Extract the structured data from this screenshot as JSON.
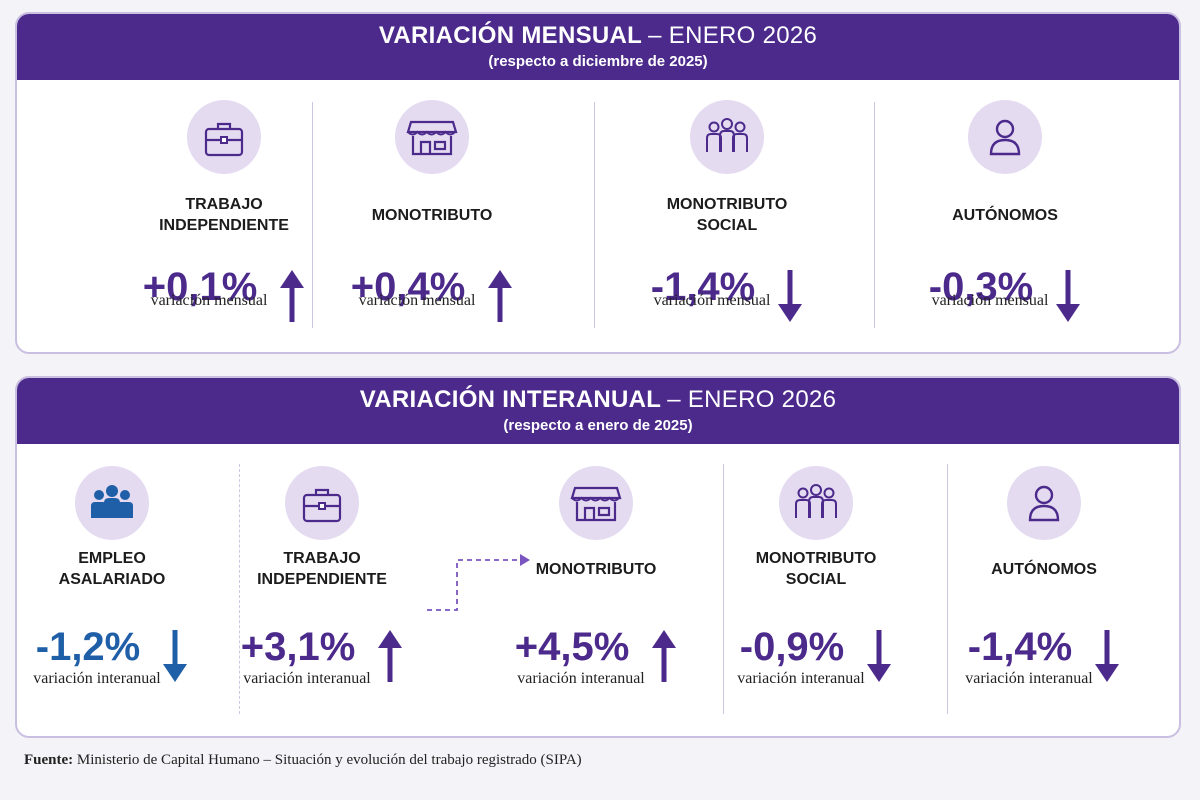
{
  "sections": [
    {
      "title": "VARIACIÓN MENSUAL",
      "title_period": "– ENERO 2026",
      "subtitle": "(respecto a diciembre de 2025)",
      "items": [
        {
          "label": "TRABAJO INDEPENDIENTE",
          "value": "+0,1%",
          "caption": "variación mensual",
          "color": "#4b2a8c"
        },
        {
          "label": "MONOTRIBUTO",
          "value": "+0,4%",
          "caption": "variación mensual",
          "color": "#4b2a8c"
        },
        {
          "label": "MONOTRIBUTO SOCIAL",
          "value": "-1,4%",
          "caption": "variación mensual",
          "color": "#4b2a8c"
        },
        {
          "label": "AUTÓNOMOS",
          "value": "-0,3%",
          "caption": "variación mensual",
          "color": "#4b2a8c"
        }
      ]
    },
    {
      "title": "VARIACIÓN INTERANUAL",
      "title_period": "– ENERO 2026",
      "subtitle": "(respecto a enero de 2025)",
      "items": [
        {
          "label": "EMPLEO ASALARIADO",
          "value": "-1,2%",
          "caption": "variación interanual",
          "color": "#1f5fa8"
        },
        {
          "label": "TRABAJO INDEPENDIENTE",
          "value": "+3,1%",
          "caption": "variación interanual",
          "color": "#4b2a8c"
        },
        {
          "label": "MONOTRIBUTO",
          "value": "+4,5%",
          "caption": "variación interanual",
          "color": "#4b2a8c"
        },
        {
          "label": "MONOTRIBUTO SOCIAL",
          "value": "-0,9%",
          "caption": "variación interanual",
          "color": "#4b2a8c"
        },
        {
          "label": "AUTÓNOMOS",
          "value": "-1,4%",
          "caption": "variación interanual",
          "color": "#4b2a8c"
        }
      ]
    }
  ],
  "source_label": "Fuente:",
  "source": "Ministerio de Capital Humano – Situación y evolución del trabajo registrado (SIPA)"
}
